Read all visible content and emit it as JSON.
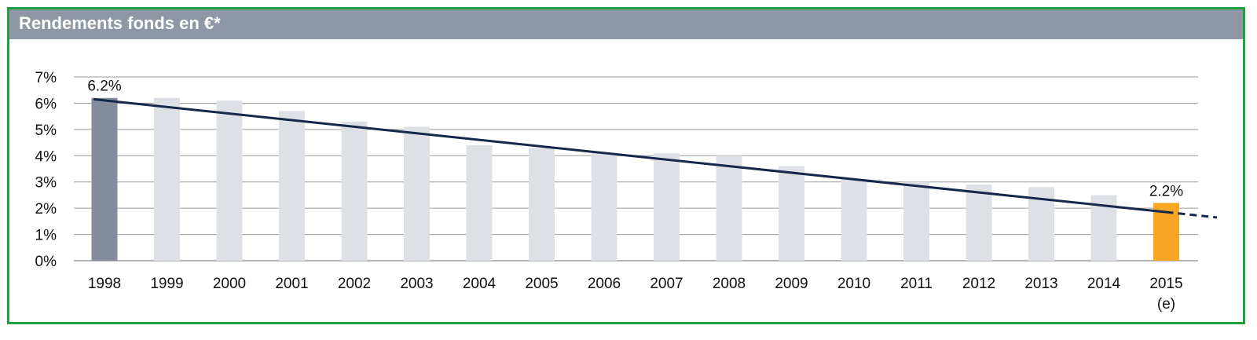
{
  "header": {
    "title": "Rendements fonds en €*"
  },
  "chart_data": {
    "type": "bar",
    "title": "Rendements fonds en €*",
    "xlabel": "",
    "ylabel": "",
    "categories": [
      "1998",
      "1999",
      "2000",
      "2001",
      "2002",
      "2003",
      "2004",
      "2005",
      "2006",
      "2007",
      "2008",
      "2009",
      "2010",
      "2011",
      "2012",
      "2013",
      "2014",
      "2015"
    ],
    "category_sublabels": {
      "2015": "(e)"
    },
    "values": [
      6.2,
      6.2,
      6.1,
      5.7,
      5.3,
      5.1,
      4.4,
      4.3,
      4.1,
      4.1,
      4.0,
      3.6,
      3.1,
      3.0,
      2.9,
      2.8,
      2.5,
      2.2
    ],
    "value_unit": "%",
    "ylim": [
      0,
      7
    ],
    "yticks": [
      "0%",
      "1%",
      "2%",
      "3%",
      "4%",
      "5%",
      "6%",
      "7%"
    ],
    "grid": true,
    "legend": "none",
    "data_labels": [
      {
        "category": "1998",
        "text": "6.2%"
      },
      {
        "category": "2015",
        "text": "2.2%"
      }
    ],
    "trendline": {
      "type": "linear",
      "start": {
        "category": "1998",
        "value": 6.15
      },
      "end": {
        "category": "2015",
        "value": 1.85
      },
      "dashed_extension_end_value": 1.6
    },
    "colors": {
      "first_bar": "#858c9b",
      "default_bar": "#dde1e6",
      "estimate_bar": "#f6a623",
      "trendline": "#14284b",
      "grid": "#9a9a9a",
      "title_bar": "#8f97a7",
      "frame": "#1fa040"
    }
  }
}
